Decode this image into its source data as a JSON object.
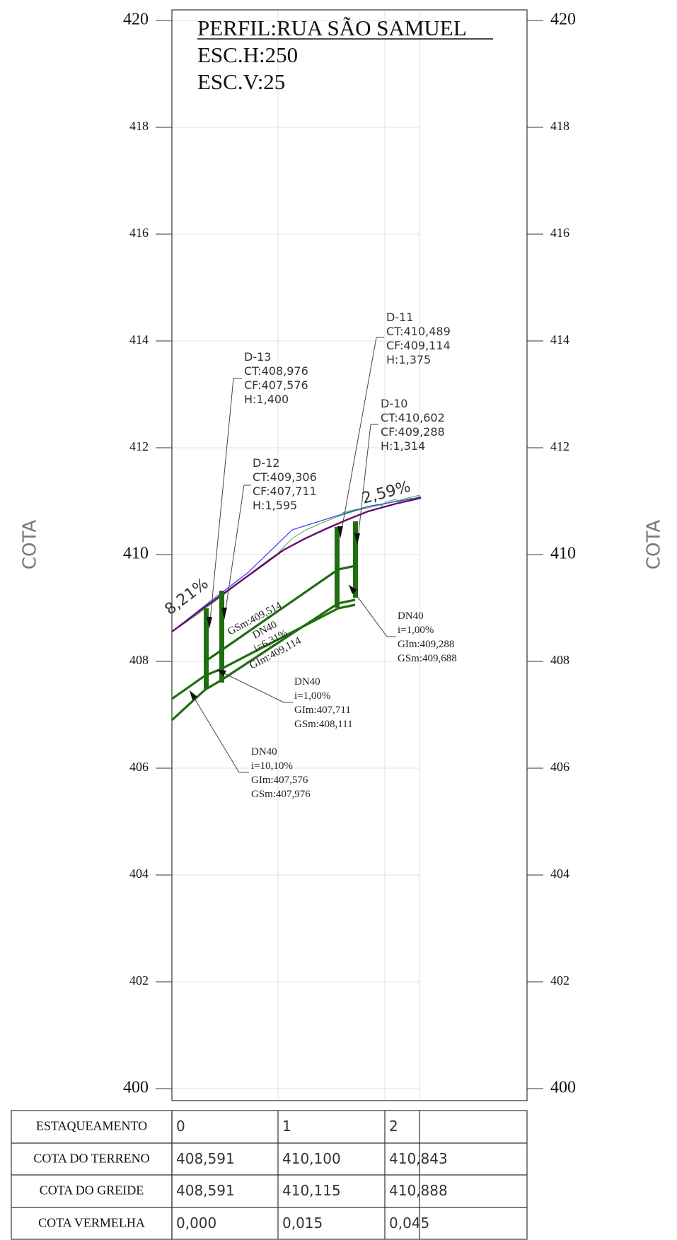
{
  "title": {
    "line1": "PERFIL:RUA SÃO SAMUEL",
    "line2": "ESC.H:250",
    "line3": "ESC.V:25"
  },
  "axis": {
    "label_left": "COTA",
    "label_right": "COTA",
    "ticks": [
      "420",
      "418",
      "416",
      "414",
      "412",
      "410",
      "408",
      "406",
      "404",
      "402",
      "400"
    ],
    "ymin": 400,
    "ymax": 420
  },
  "slopes": {
    "left": "8,21%",
    "right": "2,59%"
  },
  "wells": [
    {
      "id": "D-13",
      "ct": "CT:408,976",
      "cf": "CF:407,576",
      "h": "H:1,400"
    },
    {
      "id": "D-12",
      "ct": "CT:409,306",
      "cf": "CF:407,711",
      "h": "H:1,595"
    },
    {
      "id": "D-11",
      "ct": "CT:410,489",
      "cf": "CF:409,114",
      "h": "H:1,375"
    },
    {
      "id": "D-10",
      "ct": "CT:410,602",
      "cf": "CF:409,288",
      "h": "H:1,314"
    }
  ],
  "pipes": [
    {
      "dn": "DN40",
      "i": "i=1,00%",
      "gim": "GIm:409,288",
      "gsm": "GSm:409,688"
    },
    {
      "dn": "DN40",
      "i": "i=1,00%",
      "gim": "GIm:407,711",
      "gsm": "GSm:408,111"
    },
    {
      "dn": "DN40",
      "i": "i=10,10%",
      "gim": "GIm:407,576",
      "gsm": "GSm:407,976"
    }
  ],
  "pipe_inline": {
    "gsm": "GSm:409,514",
    "dn": "DN40",
    "i": "i=6,31%",
    "gim": "GIm:409,114"
  },
  "table": {
    "rows": [
      {
        "label": "ESTAQUEAMENTO",
        "values": [
          "0",
          "1",
          "2"
        ]
      },
      {
        "label": "COTA DO TERRENO",
        "values": [
          "408,591",
          "410,100",
          "410,843"
        ]
      },
      {
        "label": "COTA DO GREIDE",
        "values": [
          "408,591",
          "410,115",
          "410,888"
        ]
      },
      {
        "label": "COTA VERMELHA",
        "values": [
          "0,000",
          "0,015",
          "0,045"
        ]
      }
    ]
  },
  "colors": {
    "frame": "#333333",
    "grid": "#dddddd",
    "pipe": "#1f6e0f",
    "greide": "#6a0a6e",
    "terrain": "#3fb43a",
    "blue": "#3a3aff",
    "axis_label": "#777777"
  }
}
